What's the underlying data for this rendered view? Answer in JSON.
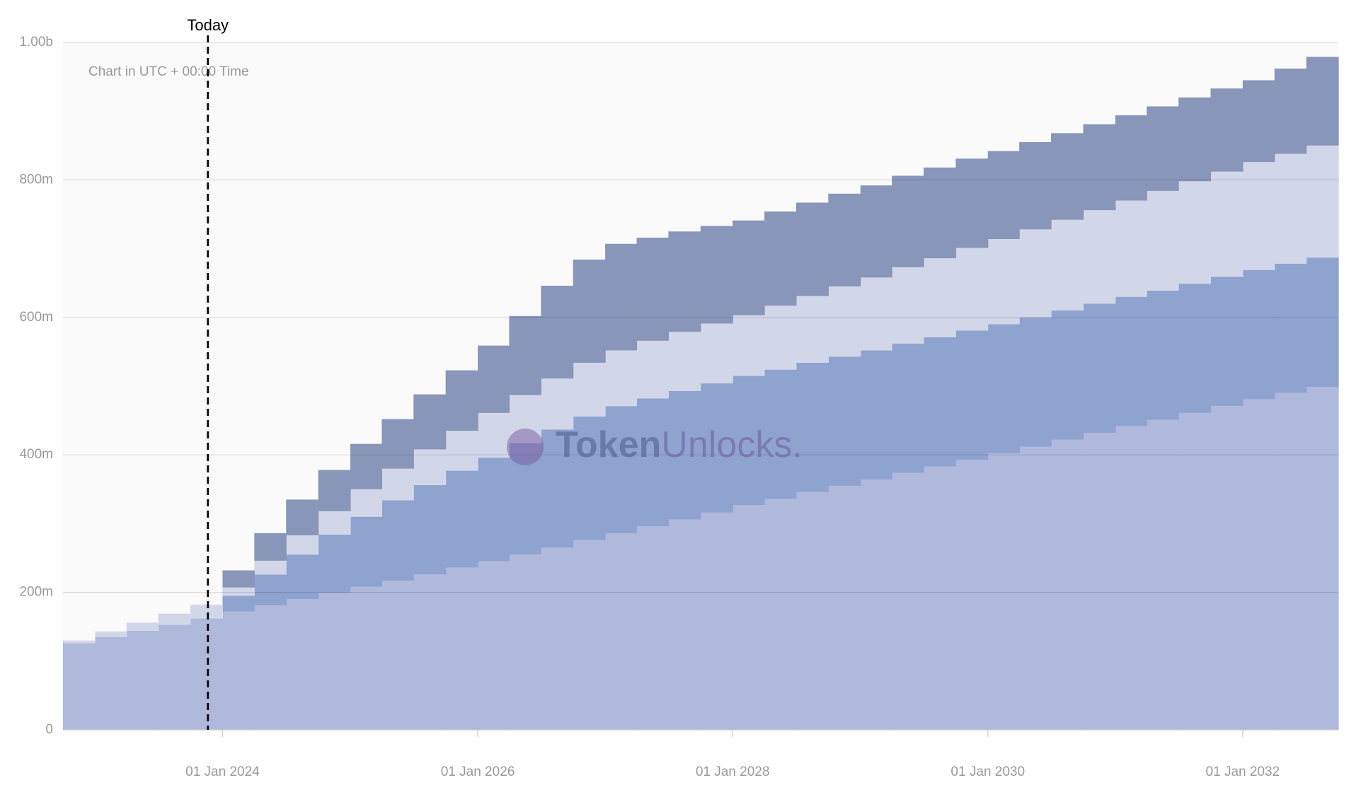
{
  "chart_data": {
    "type": "stacked-step-area",
    "note": "Chart in UTC + 00:00 Time",
    "watermark": [
      "Token",
      "Unlocks."
    ],
    "today": {
      "label": "Today",
      "x": "2023-11-20"
    },
    "x": [
      "2022-10-01",
      "2023-01-01",
      "2023-04-01",
      "2023-07-01",
      "2023-10-01",
      "2024-01-01",
      "2024-04-01",
      "2024-07-01",
      "2024-10-01",
      "2025-01-01",
      "2025-04-01",
      "2025-07-01",
      "2025-10-01",
      "2026-01-01",
      "2026-04-01",
      "2026-07-01",
      "2026-10-01",
      "2027-01-01",
      "2027-04-01",
      "2027-07-01",
      "2027-10-01",
      "2028-01-01",
      "2028-04-01",
      "2028-07-01",
      "2028-10-01",
      "2029-01-01",
      "2029-04-01",
      "2029-07-01",
      "2029-10-01",
      "2030-01-01",
      "2030-04-01",
      "2030-07-01",
      "2030-10-01",
      "2031-01-01",
      "2031-04-01",
      "2031-07-01",
      "2031-10-01",
      "2032-01-01",
      "2032-04-01",
      "2032-07-01"
    ],
    "series": [
      {
        "color": "#aeb9dc",
        "values": [
          126,
          135,
          144,
          153,
          162,
          172,
          181,
          190,
          199,
          208,
          217,
          226,
          236,
          245,
          255,
          265,
          276,
          286,
          296,
          306,
          316,
          327,
          336,
          346,
          355,
          364,
          374,
          383,
          393,
          402,
          412,
          422,
          432,
          442,
          451,
          461,
          471,
          481,
          490,
          499
        ]
      },
      {
        "color": "#8fa3cf",
        "values": [
          0,
          0,
          0,
          0,
          0,
          23,
          45,
          65,
          85,
          102,
          117,
          130,
          141,
          151,
          162,
          172,
          180,
          185,
          186,
          187,
          188,
          188,
          188,
          188,
          188,
          188,
          188,
          188,
          188,
          188,
          188,
          188,
          188,
          188,
          188,
          188,
          188,
          188,
          188,
          188
        ]
      },
      {
        "color": "#d1d6e9",
        "values": [
          4,
          8,
          12,
          16,
          20,
          12,
          20,
          28,
          34,
          40,
          46,
          52,
          58,
          65,
          70,
          74,
          78,
          81,
          84,
          86,
          87,
          88,
          93,
          97,
          102,
          106,
          111,
          115,
          120,
          124,
          128,
          132,
          136,
          140,
          145,
          149,
          153,
          157,
          160,
          163
        ]
      },
      {
        "color": "#8896b9",
        "values": [
          0,
          0,
          0,
          0,
          0,
          25,
          40,
          52,
          60,
          66,
          72,
          80,
          88,
          98,
          115,
          135,
          150,
          155,
          150,
          146,
          142,
          138,
          137,
          136,
          135,
          134,
          133,
          132,
          130,
          128,
          127,
          126,
          125,
          124,
          123,
          122,
          121,
          119,
          124,
          129
        ]
      }
    ],
    "xlim": [
      "2022-10-01",
      "2032-10-01"
    ],
    "xticks": [
      {
        "value": "2024-01-01",
        "label": "01 Jan 2024"
      },
      {
        "value": "2026-01-01",
        "label": "01 Jan 2026"
      },
      {
        "value": "2028-01-01",
        "label": "01 Jan 2028"
      },
      {
        "value": "2030-01-01",
        "label": "01 Jan 2030"
      },
      {
        "value": "2032-01-01",
        "label": "01 Jan 2032"
      }
    ],
    "ylim": [
      0,
      1000
    ],
    "yticks": [
      0,
      {
        "value": 200,
        "label": "200m"
      },
      {
        "value": 400,
        "label": "400m"
      },
      {
        "value": 600,
        "label": "600m"
      },
      {
        "value": 800,
        "label": "800m"
      },
      {
        "value": 1000,
        "label": "1.00b"
      }
    ],
    "grid": true
  }
}
